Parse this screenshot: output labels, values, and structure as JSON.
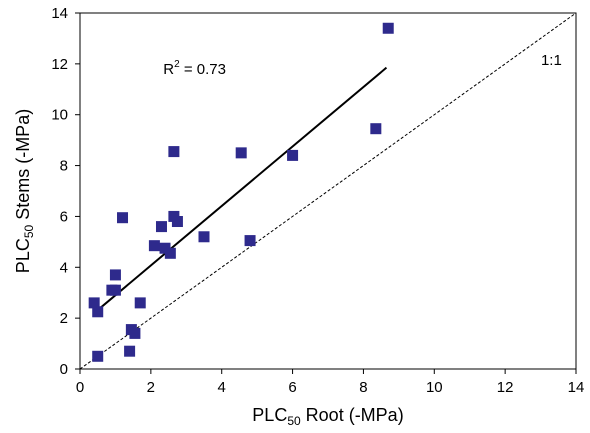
{
  "chart_data": {
    "type": "scatter",
    "xlabel": {
      "main": "PLC",
      "sub": "50",
      "rest": " Root (-MPa)"
    },
    "ylabel": {
      "main": "PLC",
      "sub": "50",
      "rest": " Stems (-MPa)"
    },
    "xlim": [
      0,
      14
    ],
    "ylim": [
      0,
      14
    ],
    "xticks": [
      0,
      2,
      4,
      6,
      8,
      10,
      12,
      14
    ],
    "yticks": [
      0,
      2,
      4,
      6,
      8,
      10,
      12,
      14
    ],
    "grid": false,
    "legend": "none",
    "marker_color": "#2e2a8c",
    "series": [
      {
        "points": [
          [
            0.4,
            2.6
          ],
          [
            0.5,
            2.25
          ],
          [
            0.5,
            0.5
          ],
          [
            0.9,
            3.1
          ],
          [
            1.0,
            3.7
          ],
          [
            1.0,
            3.1
          ],
          [
            1.2,
            5.95
          ],
          [
            1.4,
            0.7
          ],
          [
            1.45,
            1.55
          ],
          [
            1.55,
            1.4
          ],
          [
            1.7,
            2.6
          ],
          [
            2.1,
            4.85
          ],
          [
            2.3,
            5.6
          ],
          [
            2.4,
            4.75
          ],
          [
            2.55,
            4.55
          ],
          [
            2.65,
            6.0
          ],
          [
            2.65,
            8.55
          ],
          [
            2.75,
            5.8
          ],
          [
            3.5,
            5.2
          ],
          [
            4.55,
            8.5
          ],
          [
            4.8,
            5.05
          ],
          [
            6.0,
            8.4
          ],
          [
            8.35,
            9.45
          ],
          [
            8.7,
            13.4
          ]
        ]
      }
    ],
    "regression_line": {
      "x": [
        0.4,
        8.65
      ],
      "y": [
        2.2,
        11.85
      ]
    },
    "one_to_one_line": {
      "x": [
        0,
        14
      ],
      "y": [
        0,
        14
      ],
      "label": "1:1"
    },
    "annotation": {
      "base": "R",
      "sup": "2",
      "rest": " = 0.73"
    }
  }
}
